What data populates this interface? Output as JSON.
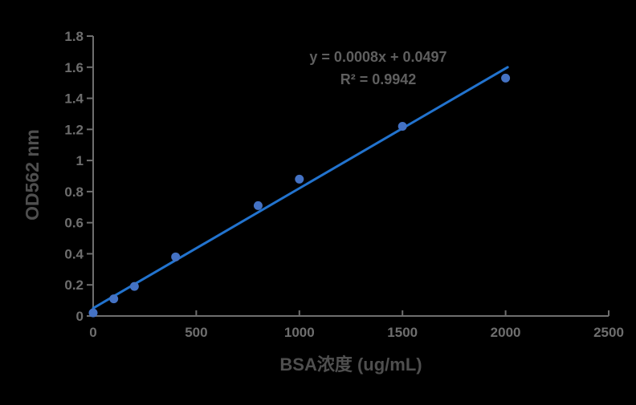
{
  "chart_data": {
    "type": "scatter",
    "title": "",
    "xlabel": "BSA浓度 (ug/mL)",
    "ylabel": "OD562 nm",
    "x": [
      0,
      100,
      200,
      400,
      800,
      1000,
      1500,
      2000
    ],
    "y": [
      0.02,
      0.11,
      0.19,
      0.38,
      0.71,
      0.88,
      1.22,
      1.53
    ],
    "xlim": [
      0,
      2500
    ],
    "ylim": [
      0,
      1.8
    ],
    "x_ticks": [
      0,
      500,
      1000,
      1500,
      2000,
      2500
    ],
    "x_tick_labels": [
      "0",
      "500",
      "1000",
      "1500",
      "2000",
      "2500"
    ],
    "y_ticks": [
      0,
      0.2,
      0.4,
      0.6,
      0.8,
      1.0,
      1.2,
      1.4,
      1.6,
      1.8
    ],
    "y_tick_labels": [
      "0",
      "0.2",
      "0.4",
      "0.6",
      "0.8",
      "1",
      "1.2",
      "1.4",
      "1.6",
      "1.8"
    ],
    "grid": false,
    "legend": false,
    "marker_radius": 5.5,
    "trendline": {
      "equation_label": "y = 0.0008x + 0.0497",
      "r2_label": "R² = 0.9942",
      "slope": 0.0008,
      "intercept": 0.0497,
      "line_points": [
        [
          0,
          0.05
        ],
        [
          2010,
          1.6
        ]
      ]
    },
    "colors": {
      "background": "#000000",
      "marker": "#4472C4",
      "trendline": "#2273CE",
      "axis_line": "#6E6E6E",
      "tick_label": "#6E6E6E",
      "axis_title": "#4F4F4F",
      "equation_text": "#5F5F5F"
    }
  }
}
